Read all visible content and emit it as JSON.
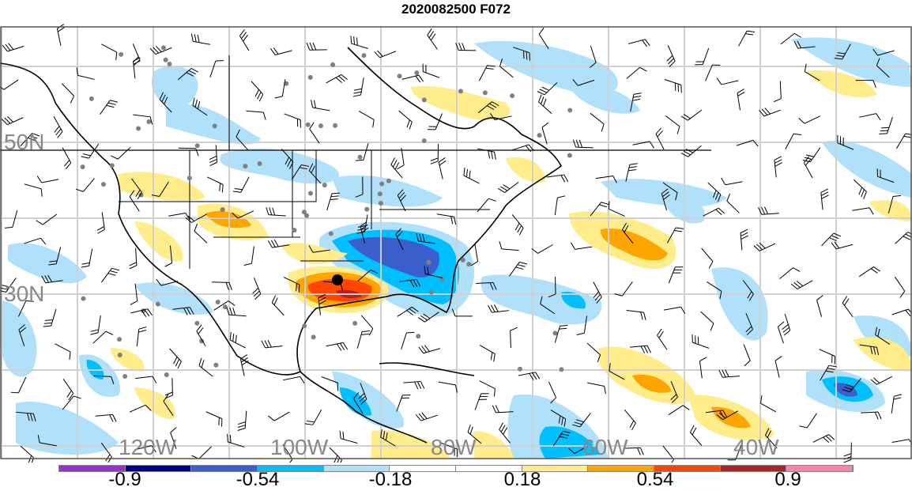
{
  "title": "2020082500 F072",
  "lat_labels": [
    "50N",
    "30N"
  ],
  "lon_labels": [
    "120W",
    "100W",
    "80W",
    "60W",
    "40W"
  ],
  "colorbar": {
    "colors": [
      "#9b30d0",
      "#00008b",
      "#3a5fcd",
      "#00bfff",
      "#b0e0fa",
      "#ffffff",
      "#ffffff",
      "#ffec8b",
      "#ffa500",
      "#ff4500",
      "#b22222",
      "#ff82ab"
    ],
    "labels": [
      "-0.9",
      "-0.54",
      "-0.18",
      "0.18",
      "0.54",
      "0.9"
    ]
  },
  "marker_color": "#000000"
}
